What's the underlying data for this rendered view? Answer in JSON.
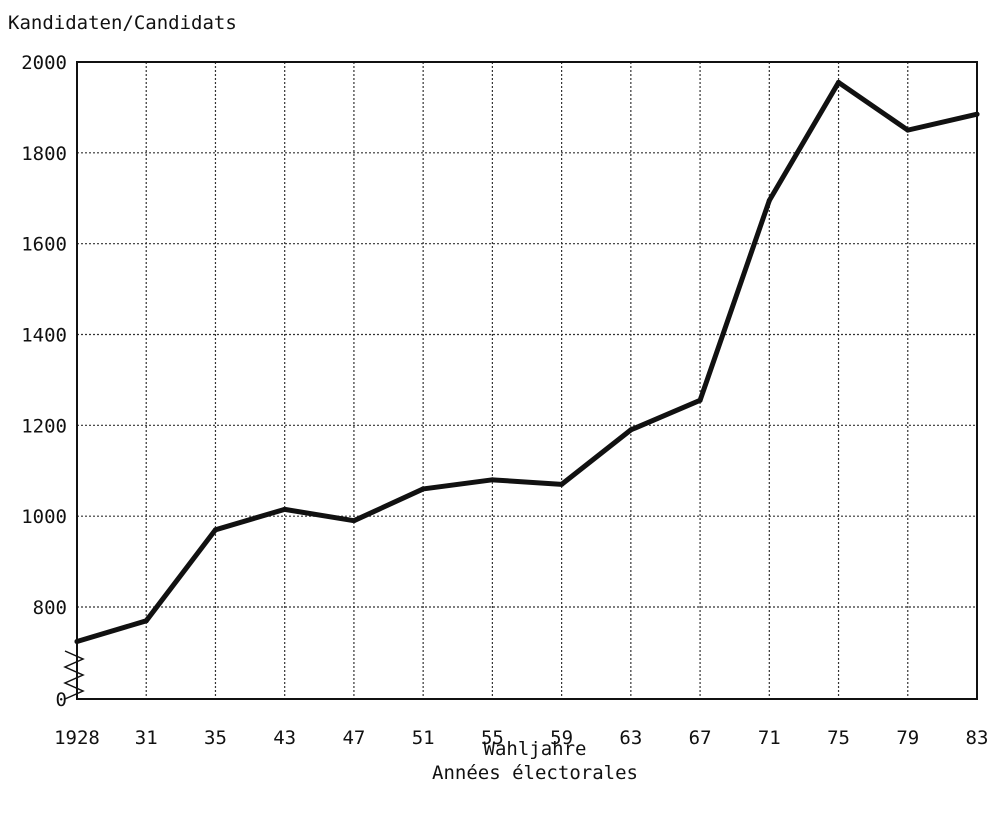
{
  "chart_data": {
    "type": "line",
    "ylabel": "Kandidaten/Candidats",
    "xlabel_line1": "Wahljahre",
    "xlabel_line2": "Années électorales",
    "categories": [
      "1928",
      "31",
      "35",
      "43",
      "47",
      "51",
      "55",
      "59",
      "63",
      "67",
      "71",
      "75",
      "79",
      "83"
    ],
    "yticks": [
      "0",
      "800",
      "1000",
      "1200",
      "1400",
      "1600",
      "1800",
      "2000"
    ],
    "ylim": [
      600,
      2000
    ],
    "y_axis_break": "600-800",
    "grid": true,
    "series": [
      {
        "values": [
          725,
          770,
          970,
          1015,
          990,
          1060,
          1080,
          1070,
          1190,
          1255,
          1695,
          1955,
          1850,
          1885
        ]
      }
    ]
  }
}
